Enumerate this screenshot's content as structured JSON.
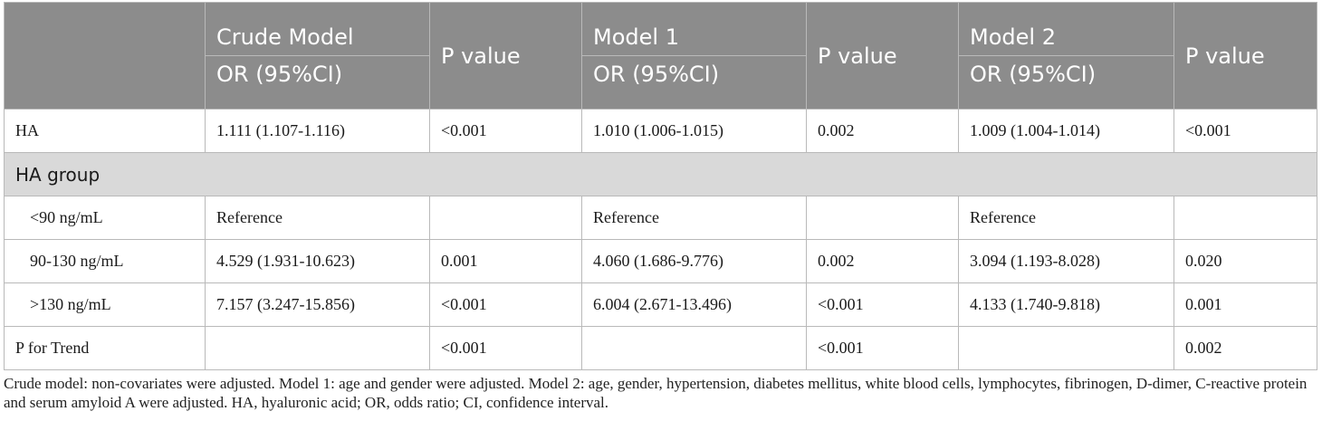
{
  "table": {
    "header": {
      "crude_model": "Crude Model",
      "model1": "Model 1",
      "model2": "Model 2",
      "or_label": "OR (95%CI)",
      "p_value": "P value"
    },
    "rows": {
      "ha": {
        "label": "HA",
        "crude_or": "1.111 (1.107-1.116)",
        "crude_p": "<0.001",
        "m1_or": "1.010 (1.006-1.015)",
        "m1_p": "0.002",
        "m2_or": "1.009 (1.004-1.014)",
        "m2_p": "<0.001"
      },
      "group_label": "HA group",
      "lt90": {
        "label": "<90 ng/mL",
        "crude_or": "Reference",
        "crude_p": "",
        "m1_or": "Reference",
        "m1_p": "",
        "m2_or": "Reference",
        "m2_p": ""
      },
      "mid": {
        "label": "90-130 ng/mL",
        "crude_or": "4.529 (1.931-10.623)",
        "crude_p": "0.001",
        "m1_or": "4.060 (1.686-9.776)",
        "m1_p": "0.002",
        "m2_or": "3.094 (1.193-8.028)",
        "m2_p": "0.020"
      },
      "gt130": {
        "label": ">130 ng/mL",
        "crude_or": "7.157 (3.247-15.856)",
        "crude_p": "<0.001",
        "m1_or": "6.004 (2.671-13.496)",
        "m1_p": "<0.001",
        "m2_or": "4.133 (1.740-9.818)",
        "m2_p": "0.001"
      },
      "trend": {
        "label": "P for Trend",
        "crude_or": "",
        "crude_p": "<0.001",
        "m1_or": "",
        "m1_p": "<0.001",
        "m2_or": "",
        "m2_p": "0.002"
      }
    }
  },
  "footnote": "Crude model: non-covariates were adjusted. Model 1: age and gender were adjusted.  Model 2: age, gender, hypertension, diabetes mellitus, white blood cells, lymphocytes, fibrinogen, D-dimer, C-reactive protein and serum amyloid A were adjusted. HA, hyaluronic acid; OR, odds ratio; CI, confidence interval."
}
